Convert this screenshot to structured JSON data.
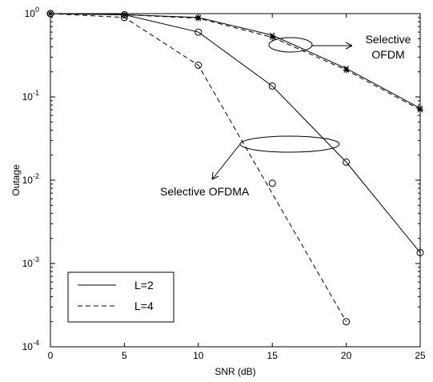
{
  "chart_data": {
    "type": "line",
    "title": "",
    "xlabel": "SNR   (dB)",
    "ylabel": "Outage",
    "xlim": [
      0,
      25
    ],
    "ylim": [
      0.0001,
      1
    ],
    "y_scale": "log",
    "x_ticks": [
      0,
      5,
      10,
      15,
      20,
      25
    ],
    "y_ticks": [
      {
        "value": 1,
        "base": "10",
        "exp": "0"
      },
      {
        "value": 0.1,
        "base": "10",
        "exp": "-1"
      },
      {
        "value": 0.01,
        "base": "10",
        "exp": "-2"
      },
      {
        "value": 0.001,
        "base": "10",
        "exp": "-3"
      },
      {
        "value": 0.0001,
        "base": "10",
        "exp": "-4"
      }
    ],
    "grid": false,
    "legend": {
      "placement": "bottom-left",
      "entries": [
        {
          "label": "L=2",
          "linestyle": "solid"
        },
        {
          "label": "L=4",
          "linestyle": "dashed"
        }
      ]
    },
    "series": [
      {
        "group": "OFDMA",
        "linestyle": "solid",
        "marker": "circle",
        "x": [
          0,
          5,
          10,
          15,
          20,
          25
        ],
        "y": [
          1.0,
          0.97,
          0.6,
          0.135,
          0.0165,
          0.00135
        ]
      },
      {
        "group": "OFDMA",
        "linestyle": "dashed",
        "marker": "circle",
        "x": [
          0,
          5,
          10,
          20
        ],
        "y": [
          1.0,
          0.9,
          0.24,
          0.0002
        ]
      },
      {
        "group": "OFDMA",
        "linestyle": "none",
        "marker": "circle",
        "x": [
          15
        ],
        "y": [
          0.0092
        ]
      },
      {
        "group": "OFDM",
        "linestyle": "solid",
        "marker": "x",
        "x": [
          0,
          5,
          10,
          15,
          20,
          25
        ],
        "y": [
          1.0,
          0.97,
          0.9,
          0.55,
          0.22,
          0.073
        ]
      },
      {
        "group": "OFDM",
        "linestyle": "dashed",
        "marker": "star",
        "x": [
          0,
          5,
          10,
          15,
          20,
          25
        ],
        "y": [
          1.0,
          0.97,
          0.88,
          0.52,
          0.21,
          0.07
        ]
      }
    ],
    "annotations": [
      {
        "lines": [
          "Selective",
          "OFDM"
        ]
      },
      {
        "lines": [
          "Selective OFDMA"
        ]
      }
    ]
  }
}
